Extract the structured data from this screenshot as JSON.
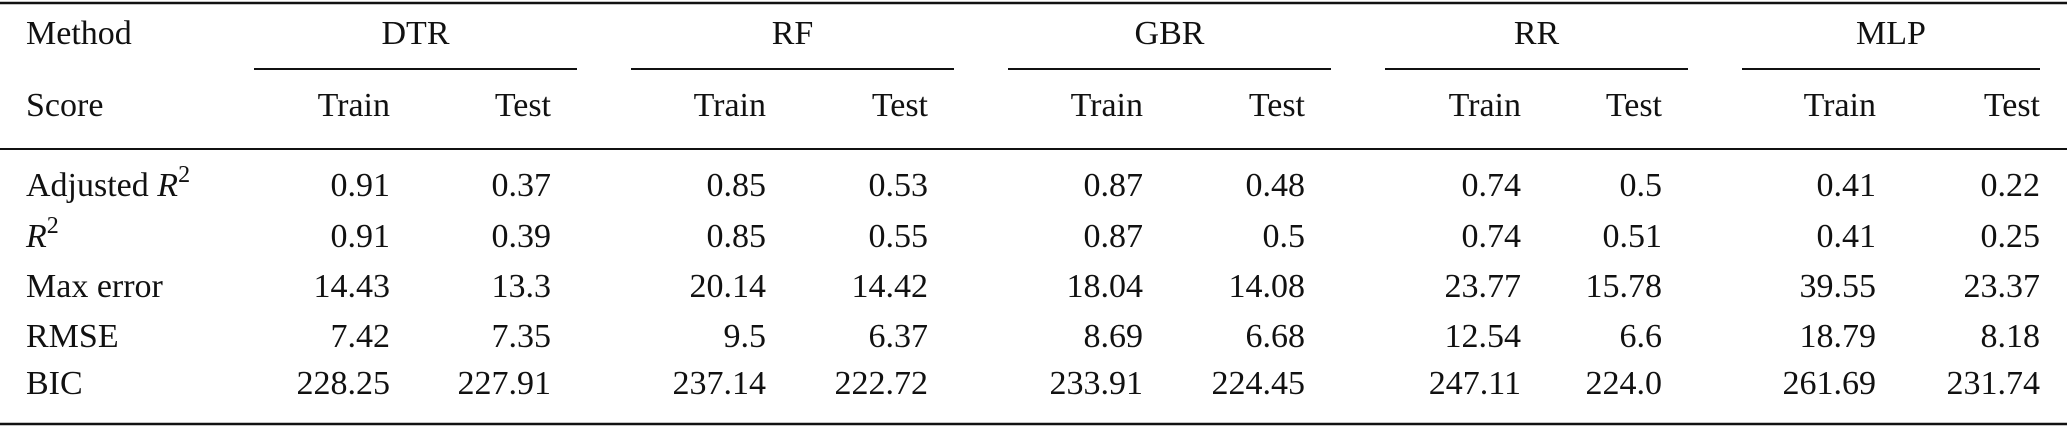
{
  "table": {
    "header": {
      "method": "Method",
      "score": "Score",
      "groups": [
        {
          "name": "DTR",
          "columns": [
            "Train",
            "Test"
          ]
        },
        {
          "name": "RF",
          "columns": [
            "Train",
            "Test"
          ]
        },
        {
          "name": "GBR",
          "columns": [
            "Train",
            "Test"
          ]
        },
        {
          "name": "RR",
          "columns": [
            "Train",
            "Test"
          ]
        },
        {
          "name": "MLP",
          "columns": [
            "Train",
            "Test"
          ]
        }
      ]
    },
    "rows": [
      {
        "label": [
          {
            "text": "Adjusted "
          },
          {
            "text": "R",
            "style": "italic"
          },
          {
            "text": "2",
            "style": "sup"
          }
        ],
        "values": [
          "0.91",
          "0.37",
          "0.85",
          "0.53",
          "0.87",
          "0.48",
          "0.74",
          "0.5",
          "0.41",
          "0.22"
        ]
      },
      {
        "label": [
          {
            "text": "R",
            "style": "italic"
          },
          {
            "text": "2",
            "style": "sup"
          }
        ],
        "values": [
          "0.91",
          "0.39",
          "0.85",
          "0.55",
          "0.87",
          "0.5",
          "0.74",
          "0.51",
          "0.41",
          "0.25"
        ]
      },
      {
        "label": [
          {
            "text": "Max error"
          }
        ],
        "values": [
          "14.43",
          "13.3",
          "20.14",
          "14.42",
          "18.04",
          "14.08",
          "23.77",
          "15.78",
          "39.55",
          "23.37"
        ]
      },
      {
        "label": [
          {
            "text": "RMSE"
          }
        ],
        "values": [
          "7.42",
          "7.35",
          "9.5",
          "6.37",
          "8.69",
          "6.68",
          "12.54",
          "6.6",
          "18.79",
          "8.18"
        ]
      },
      {
        "label": [
          {
            "text": "BIC"
          }
        ],
        "values": [
          "228.25",
          "227.91",
          "237.14",
          "222.72",
          "233.91",
          "224.45",
          "247.11",
          "224.0",
          "261.69",
          "231.74"
        ]
      }
    ]
  }
}
